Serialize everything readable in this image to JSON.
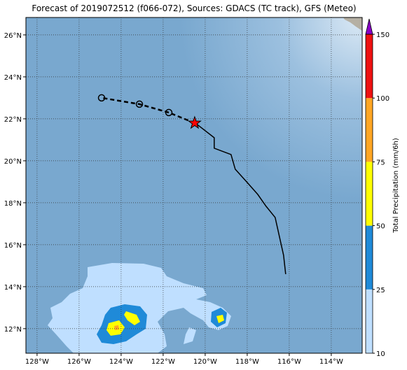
{
  "chart_data": {
    "type": "map",
    "title": "Forecast of 2019072512 (f066-072), Sources: GDACS (TC track), GFS (Meteo)",
    "xlim": [
      -128.53,
      -112.53
    ],
    "ylim": [
      10.83,
      26.83
    ],
    "xticks": [
      {
        "value": -128,
        "label": "128°W"
      },
      {
        "value": -126,
        "label": "126°W"
      },
      {
        "value": -124,
        "label": "124°W"
      },
      {
        "value": -122,
        "label": "122°W"
      },
      {
        "value": -120,
        "label": "120°W"
      },
      {
        "value": -118,
        "label": "118°W"
      },
      {
        "value": -116,
        "label": "116°W"
      },
      {
        "value": -114,
        "label": "114°W"
      }
    ],
    "yticks": [
      {
        "value": 12,
        "label": "12°N"
      },
      {
        "value": 14,
        "label": "14°N"
      },
      {
        "value": 16,
        "label": "16°N"
      },
      {
        "value": 18,
        "label": "18°N"
      },
      {
        "value": 20,
        "label": "20°N"
      },
      {
        "value": 22,
        "label": "22°N"
      },
      {
        "value": 24,
        "label": "24°N"
      },
      {
        "value": 26,
        "label": "26°N"
      }
    ],
    "grid": true,
    "past_track": {
      "color": "#000000",
      "lon": [
        -116.17,
        -116.27,
        -116.67,
        -117.1,
        -117.5,
        -118.03,
        -118.57,
        -118.77,
        -119.57,
        -119.57,
        -120.43
      ],
      "lat": [
        14.6,
        15.5,
        17.3,
        17.83,
        18.4,
        19.0,
        19.6,
        20.3,
        20.6,
        21.1,
        21.77
      ]
    },
    "current_position": {
      "lon": -120.5,
      "lat": 21.8,
      "color": "#ff0000"
    },
    "forecast_track": {
      "color": "#000000",
      "lon": [
        -121.73,
        -123.13,
        -124.93
      ],
      "lat": [
        22.3,
        22.7,
        23.0
      ]
    },
    "colorbar": {
      "label": "Total Precipitation (mm/6h)",
      "ticks": [
        10,
        25,
        50,
        75,
        100,
        150
      ],
      "colors": [
        "#bfdfff",
        "#1f8ad8",
        "#ffff00",
        "#ffa624",
        "#ee1111"
      ],
      "extend_color": "#8a00c8"
    }
  }
}
